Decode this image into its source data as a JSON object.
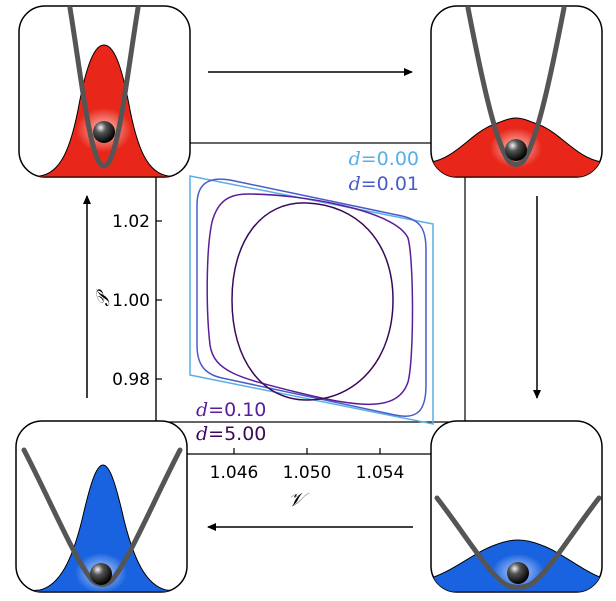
{
  "y_axis": {
    "symbol": "𝒫",
    "ticks": [
      "1.02",
      "1.00",
      "0.98"
    ]
  },
  "x_axis": {
    "symbol": "𝒱",
    "ticks": [
      "1.046",
      "1.050",
      "1.054"
    ]
  },
  "legend_top": [
    {
      "prefix": "d",
      "suffix": "=0.00",
      "color": "#5aaee6"
    },
    {
      "prefix": "d",
      "suffix": "=0.01",
      "color": "#4a5cc8"
    }
  ],
  "legend_bottom": [
    {
      "prefix": "d",
      "suffix": "=0.10",
      "color": "#5a1e9a"
    },
    {
      "prefix": "d",
      "suffix": "=5.00",
      "color": "#3a0a5a"
    }
  ],
  "colors": {
    "hot": "#e8271a",
    "cold": "#1a63e0",
    "potential": "#555555",
    "frame": "#000000",
    "cycle_d0": "#5aaee6",
    "cycle_d001": "#4a5cc8",
    "cycle_d010": "#5a1e9a",
    "cycle_d500": "#3a0a5a"
  },
  "panels": [
    {
      "id": "top-left",
      "distribution": "narrow",
      "color": "hot"
    },
    {
      "id": "top-right",
      "distribution": "wide",
      "color": "hot"
    },
    {
      "id": "bottom-left",
      "distribution": "narrow",
      "color": "cold"
    },
    {
      "id": "bottom-right",
      "distribution": "wide",
      "color": "cold"
    }
  ],
  "arrows": [
    "right",
    "down",
    "left",
    "up"
  ]
}
